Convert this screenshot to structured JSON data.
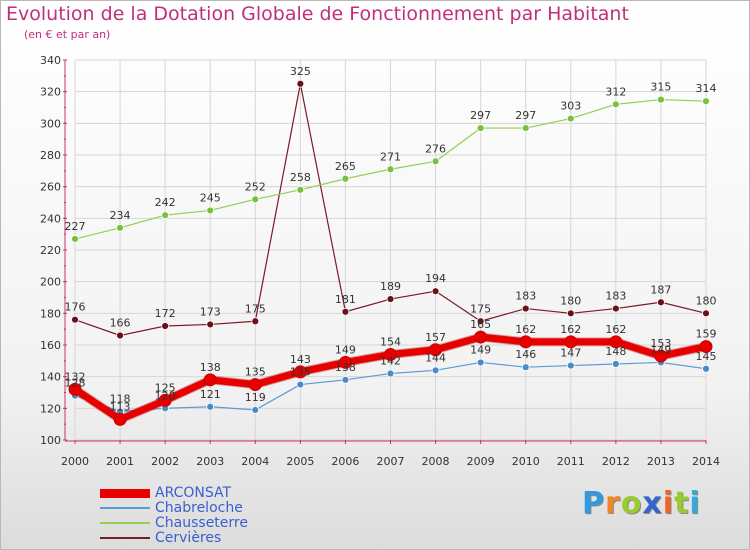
{
  "title": "Evolution de la Dotation Globale de Fonctionnement par Habitant",
  "subtitle": "(en € et par an)",
  "colors": {
    "title": "#c0307a",
    "axis": "#cc3366",
    "legend_text": "#3a5fcd",
    "label_text": "#333333"
  },
  "chart_data": {
    "type": "line",
    "title": "Evolution de la Dotation Globale de Fonctionnement par Habitant",
    "subtitle": "(en € et par an)",
    "x": [
      "2000",
      "2001",
      "2002",
      "2003",
      "2004",
      "2005",
      "2006",
      "2007",
      "2008",
      "2009",
      "2010",
      "2011",
      "2012",
      "2013",
      "2014"
    ],
    "ylim": [
      100,
      340
    ],
    "yticks": [
      100,
      120,
      140,
      160,
      180,
      200,
      220,
      240,
      260,
      280,
      300,
      320,
      340
    ],
    "grid": true,
    "legend_position": "bottom-left",
    "series": [
      {
        "name": "Cervières",
        "color": "#7a1a24",
        "fill": "#6a1018",
        "width": 1.2,
        "marker_r": 3.5,
        "values": [
          176,
          166,
          172,
          173,
          175,
          325,
          181,
          189,
          194,
          175,
          183,
          180,
          183,
          187,
          180
        ]
      },
      {
        "name": "Chausseterre",
        "color": "#92d050",
        "fill": "#78c040",
        "width": 1.2,
        "marker_r": 3.5,
        "values": [
          227,
          234,
          242,
          245,
          252,
          258,
          265,
          271,
          276,
          297,
          297,
          303,
          312,
          315,
          314
        ]
      },
      {
        "name": "Chabreloche",
        "color": "#5b9bd5",
        "fill": "#4a8ac8",
        "width": 1.2,
        "marker_r": 3.5,
        "values": [
          128,
          118,
          120,
          121,
          119,
          135,
          138,
          142,
          144,
          149,
          146,
          147,
          148,
          149,
          145
        ]
      },
      {
        "name": "ARCONSAT",
        "color": "#e60000",
        "fill": "#e60000",
        "width": 7,
        "marker_r": 6,
        "values": [
          132,
          113,
          125,
          138,
          135,
          143,
          149,
          154,
          157,
          165,
          162,
          162,
          162,
          153,
          159
        ]
      }
    ],
    "legend_order": [
      "ARCONSAT",
      "Chabreloche",
      "Chausseterre",
      "Cervières"
    ]
  },
  "logo": {
    "letters": [
      "P",
      "r",
      "o",
      "x",
      "i",
      "t",
      "i"
    ],
    "colors": [
      "#3399dd",
      "#ee8822",
      "#99cc33",
      "#3366cc",
      "#ee6622",
      "#99cc33",
      "#33aadd"
    ]
  }
}
